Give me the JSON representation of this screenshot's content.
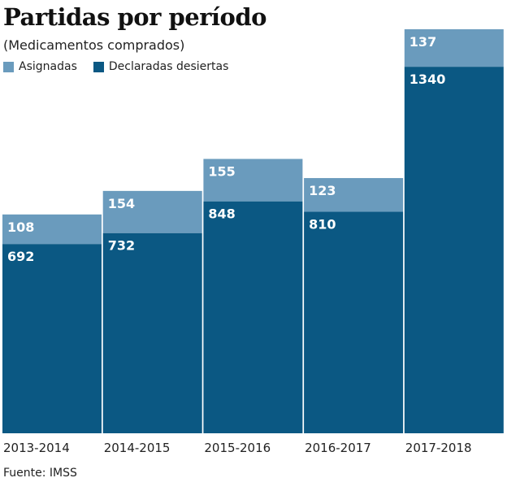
{
  "chart_data": {
    "type": "bar",
    "stacked": true,
    "title": "Partidas por período",
    "subtitle": "(Medicamentos comprados)",
    "categories": [
      "2013-2014",
      "2014-2015",
      "2015-2016",
      "2016-2017",
      "2017-2018"
    ],
    "series": [
      {
        "name": "Declaradas desiertas",
        "color": "#0b5883",
        "values": [
          692,
          732,
          848,
          810,
          1340
        ]
      },
      {
        "name": "Asignadas",
        "color": "#6a9bbd",
        "values": [
          108,
          154,
          155,
          123,
          137
        ]
      }
    ],
    "legend_order": [
      "Asignadas",
      "Declaradas desiertas"
    ],
    "ylim": [
      0,
      1477
    ],
    "grid": false,
    "legend": "top-left",
    "source": "Fuente: IMSS"
  }
}
